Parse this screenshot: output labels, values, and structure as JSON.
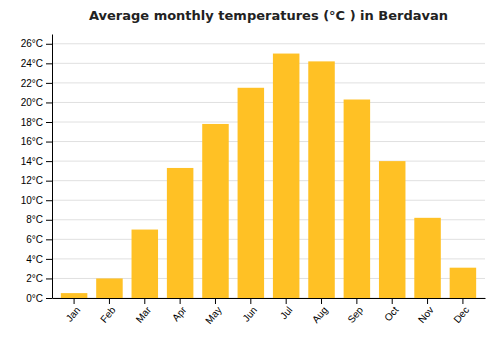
{
  "chart_data": {
    "type": "bar",
    "title": "Average monthly temperatures (°C ) in Berdavan",
    "categories": [
      "Jan",
      "Feb",
      "Mar",
      "Apr",
      "May",
      "Jun",
      "Jul",
      "Aug",
      "Sep",
      "Oct",
      "Nov",
      "Dec"
    ],
    "values": [
      0.5,
      2.0,
      7.0,
      13.3,
      17.8,
      21.5,
      25.0,
      24.2,
      20.3,
      14.0,
      8.2,
      3.1
    ],
    "color": "#FFC125",
    "ylim": [
      0,
      27
    ],
    "yticks": [
      {
        "value": 0,
        "label": "0°C"
      },
      {
        "value": 2,
        "label": "2°C"
      },
      {
        "value": 4,
        "label": "4°C"
      },
      {
        "value": 6,
        "label": "6°C"
      },
      {
        "value": 8,
        "label": "8°C"
      },
      {
        "value": 10,
        "label": "10°C"
      },
      {
        "value": 12,
        "label": "12°C"
      },
      {
        "value": 14,
        "label": "14°C"
      },
      {
        "value": 16,
        "label": "16°C"
      },
      {
        "value": 18,
        "label": "18°C"
      },
      {
        "value": 20,
        "label": "20°C"
      },
      {
        "value": 22,
        "label": "22°C"
      },
      {
        "value": 24,
        "label": "24°C"
      },
      {
        "value": 26,
        "label": "26°C"
      }
    ],
    "grid": true
  }
}
